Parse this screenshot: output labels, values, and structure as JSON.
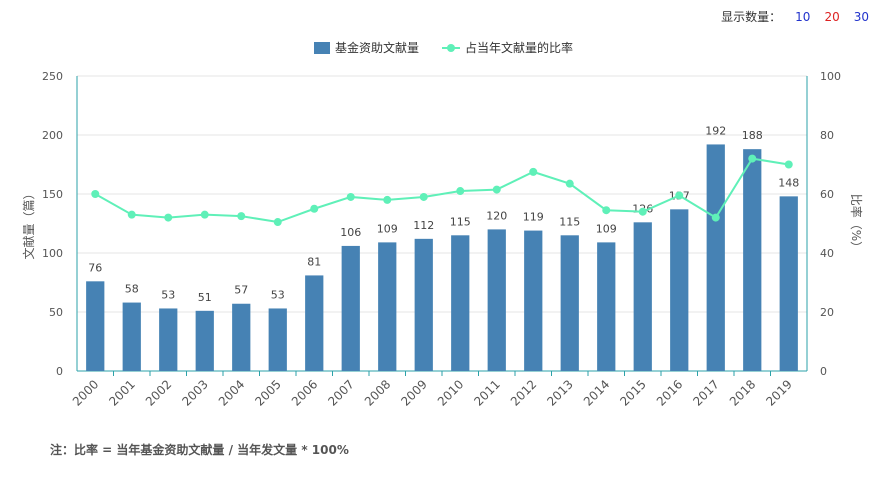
{
  "display_count": {
    "label": "显示数量：",
    "options": [
      {
        "text": "10",
        "color": "#2233cc"
      },
      {
        "text": "20",
        "color": "#dd2222"
      },
      {
        "text": "30",
        "color": "#2233cc"
      }
    ]
  },
  "footnote": "注：比率 = 当年基金资助文献量 / 当年发文量 * 100%",
  "colors": {
    "bar": "#4682b4",
    "line": "#5ff0b8",
    "axis": "#2ba2a8",
    "grid": "#e6e6e6",
    "text": "#555555"
  },
  "chart_data": {
    "type": "bar+line",
    "categories": [
      "2000",
      "2001",
      "2002",
      "2003",
      "2004",
      "2005",
      "2006",
      "2007",
      "2008",
      "2009",
      "2010",
      "2011",
      "2012",
      "2013",
      "2014",
      "2015",
      "2016",
      "2017",
      "2018",
      "2019"
    ],
    "series": [
      {
        "name": "基金资助文献量",
        "type": "bar",
        "axis": "left",
        "values": [
          76,
          58,
          53,
          51,
          57,
          53,
          81,
          106,
          109,
          112,
          115,
          120,
          119,
          115,
          109,
          126,
          137,
          192,
          188,
          148
        ]
      },
      {
        "name": "占当年文献量的比率",
        "type": "line",
        "axis": "right",
        "values": [
          60,
          53,
          52,
          53,
          52.5,
          50.5,
          55,
          59,
          58,
          59,
          61,
          61.5,
          67.5,
          63.5,
          54.5,
          54,
          59.5,
          52,
          72,
          70
        ]
      }
    ],
    "ylabel_left": "文献量（篇）",
    "ylabel_right": "比率（%）",
    "ylim_left": [
      0,
      250
    ],
    "yticks_left": [
      "0",
      "50",
      "100",
      "150",
      "200",
      "250"
    ],
    "ylim_right": [
      0,
      100
    ],
    "yticks_right": [
      "0",
      "20",
      "40",
      "60",
      "80",
      "100"
    ],
    "grid": true,
    "legend_position": "top-center"
  }
}
